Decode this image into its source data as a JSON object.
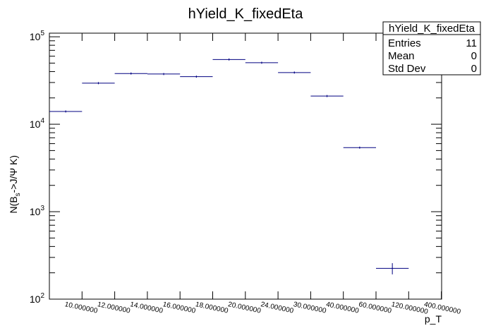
{
  "chart_data": {
    "type": "scatter",
    "title": "hYield_K_fixedEta",
    "xlabel": "p_T",
    "ylabel_main": "N(B",
    "ylabel_sub": "s",
    "ylabel_rest": "->J/Ψ K)",
    "yscale": "log",
    "ylim": [
      100,
      110000
    ],
    "categories": [
      "10.000000",
      "12.000000",
      "14.000000",
      "16.000000",
      "18.000000",
      "20.000000",
      "24.000000",
      "30.000000",
      "40.000000",
      "60.000000",
      "120.000000",
      "400.000000"
    ],
    "bins": [
      {
        "x_low": "10.000000",
        "x_high": "12.000000",
        "value": 14000
      },
      {
        "x_low": "12.000000",
        "x_high": "14.000000",
        "value": 29500
      },
      {
        "x_low": "14.000000",
        "x_high": "16.000000",
        "value": 38000
      },
      {
        "x_low": "16.000000",
        "x_high": "18.000000",
        "value": 37500
      },
      {
        "x_low": "18.000000",
        "x_high": "20.000000",
        "value": 35000
      },
      {
        "x_low": "20.000000",
        "x_high": "24.000000",
        "value": 55000
      },
      {
        "x_low": "24.000000",
        "x_high": "30.000000",
        "value": 50500
      },
      {
        "x_low": "30.000000",
        "x_high": "40.000000",
        "value": 39000
      },
      {
        "x_low": "40.000000",
        "x_high": "60.000000",
        "value": 21000
      },
      {
        "x_low": "60.000000",
        "x_high": "120.000000",
        "value": 5400
      },
      {
        "x_low": "120.000000",
        "x_high": "400.000000",
        "value": 225,
        "err": 33
      }
    ],
    "marker_color": "#000080",
    "ytick_labels": [
      {
        "value": 100,
        "base": "10",
        "exp": "2"
      },
      {
        "value": 1000,
        "base": "10",
        "exp": "3"
      },
      {
        "value": 10000,
        "base": "10",
        "exp": "4"
      },
      {
        "value": 100000,
        "base": "10",
        "exp": "5"
      }
    ]
  },
  "stats_box": {
    "title": "hYield_K_fixedEta",
    "rows": [
      {
        "label": "Entries",
        "value": "11"
      },
      {
        "label": "Mean",
        "value": "0"
      },
      {
        "label": "Std Dev",
        "value": "0"
      }
    ]
  }
}
